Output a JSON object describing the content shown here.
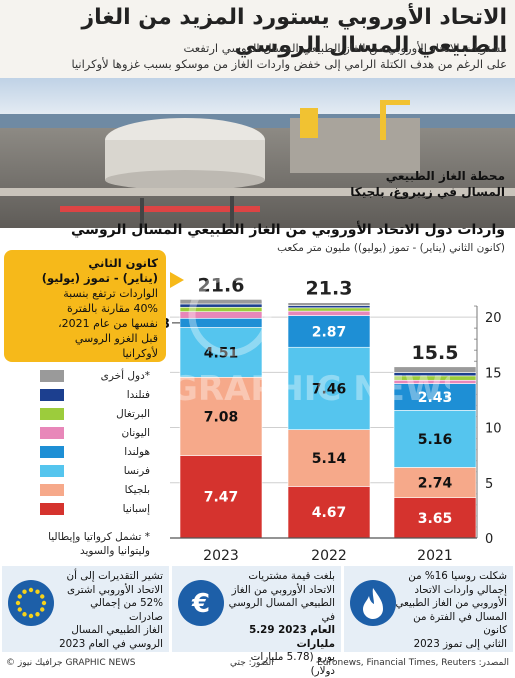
{
  "header": {
    "title": "الاتحاد الأوروبي يستورد المزيد من الغاز الطبيعي المسال الروسي",
    "subtitle_line1": "مشتريات الاتحاد الأوروبي من الغاز الطبيعي المسال الروسي ارتفعت",
    "subtitle_line2": "على الرغم من هدف الكتلة الرامي إلى خفض واردات الغاز من موسكو بسبب غزوها لأوكرانيا"
  },
  "photo": {
    "caption_line1": "محطة الغاز الطبيعي",
    "caption_line2": "المسال في زيبروغ، بلجيكا"
  },
  "chart_header": {
    "title": "واردات دول الاتحاد الأوروبي من الغاز الطبيعي المسال الروسي",
    "subtitle": "(كانون الثاني (يناير) - تموز (يوليو)) مليون متر مكعب"
  },
  "bubble": {
    "heading_line1": "كانون الثاني",
    "heading_line2": "(يناير) - تموز (يوليو)",
    "line1": "الواردات ترتفع بنسبة",
    "line2": "40% مقارنة بالفترة",
    "line3": "نفسها من عام 2021،",
    "line4": "قبل الغزو الروسي",
    "line5": "لأوكرانيا"
  },
  "legend": {
    "items": [
      {
        "label": "دول أخرى*",
        "color": "#9a9a9a"
      },
      {
        "label": "فنلندا",
        "color": "#1c3f8f"
      },
      {
        "label": "البرتغال",
        "color": "#9ccc3c"
      },
      {
        "label": "اليونان",
        "color": "#e887b9"
      },
      {
        "label": "هولندا",
        "color": "#1e8fd5"
      },
      {
        "label": "فرنسا",
        "color": "#55c5ee"
      },
      {
        "label": "بلجيكا",
        "color": "#f6a98a"
      },
      {
        "label": "إسبانيا",
        "color": "#d5332e"
      }
    ],
    "note_line1": "* تشمل كرواتيا وإيطاليا",
    "note_line2": "وليتوانيا والسويد"
  },
  "chart_data": {
    "type": "bar",
    "stacked": true,
    "categories": [
      "2023",
      "2022",
      "2021"
    ],
    "totals": [
      21.6,
      21.3,
      15.5
    ],
    "series": [
      {
        "name": "إسبانيا",
        "color": "#d5332e",
        "values": [
          7.47,
          4.67,
          3.65
        ]
      },
      {
        "name": "بلجيكا",
        "color": "#f6a98a",
        "values": [
          7.08,
          5.14,
          2.74
        ]
      },
      {
        "name": "فرنسا",
        "color": "#55c5ee",
        "values": [
          4.51,
          7.46,
          5.16
        ]
      },
      {
        "name": "هولندا",
        "color": "#1e8fd5",
        "values": [
          0.83,
          2.87,
          2.43
        ]
      },
      {
        "name": "اليونان",
        "color": "#e887b9",
        "values": [
          0.6,
          0.4,
          0.3
        ]
      },
      {
        "name": "البرتغال",
        "color": "#9ccc3c",
        "values": [
          0.4,
          0.3,
          0.4
        ]
      },
      {
        "name": "فنلندا",
        "color": "#1c3f8f",
        "values": [
          0.3,
          0.2,
          0.3
        ]
      },
      {
        "name": "دول أخرى*",
        "color": "#9a9a9a",
        "values": [
          0.41,
          0.26,
          0.52
        ]
      }
    ],
    "labeled": {
      "إسبانيا": [
        "7.47",
        "4.67",
        "3.65"
      ],
      "بلجيكا": [
        "7.08",
        "5.14",
        "2.74"
      ],
      "فرنسا": [
        "4.51",
        "7.46",
        "5.16"
      ],
      "هولندا": [
        "0.83",
        "2.87",
        "2.43"
      ]
    },
    "ylim": [
      0,
      22
    ],
    "yticks": [
      0,
      5,
      10,
      15,
      20
    ],
    "grid": true
  },
  "panels": [
    {
      "line1": "شكلت روسيا 16% من",
      "line2": "إجمالي واردات الاتحاد",
      "line3": "الأوروبي من الغاز الطبيعي",
      "line4": "المسال في الفترة من كانون",
      "line5": "الثاني إلى تموز 2023",
      "icon": "flame-icon"
    },
    {
      "line1": "بلغت قيمة مشتريات",
      "line2": "الاتحاد الأوروبي من الغاز",
      "line3": "الطبيعي المسال الروسي في",
      "line4": "العام 2023 5.29 مليارات",
      "line5": "يورو (5.78 مليارات دولار)",
      "icon": "euro-icon"
    },
    {
      "line1": "تشير التقديرات إلى أن",
      "line2": "الاتحاد الأوروبي اشترى",
      "line3": "52% من إجمالي صادرات",
      "line4": "الغاز الطبيعي المسال",
      "line5": "الروسي في العام 2023",
      "icon": "eu-flag-icon"
    }
  ],
  "footer": {
    "source": "المصدر: Euronews, Financial Times, Reuters",
    "photo_credit": "الصور: جتي",
    "copyright": "© جرافيك نيوز GRAPHIC NEWS"
  },
  "watermark": {
    "text": "GRAPHIC NEWS"
  },
  "colors": {
    "panel_bg": "#e6eef6",
    "bubble": "#f6b91a",
    "grid": "#cfcfcf"
  }
}
